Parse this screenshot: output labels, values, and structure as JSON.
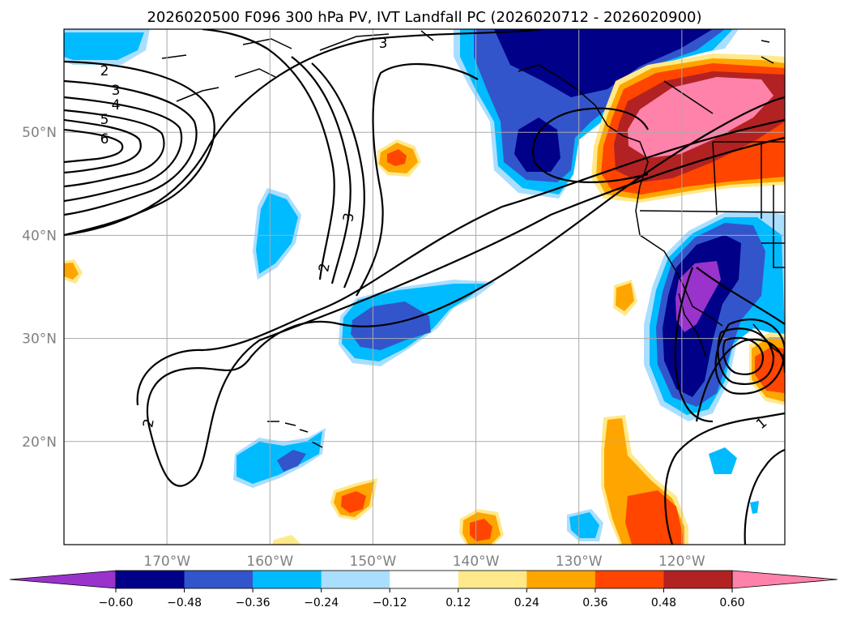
{
  "chart_data": {
    "type": "heatmap",
    "title": "2026020500 F096 300 hPa PV, IVT Landfall PC (2026020712 - 2026020900)",
    "map_extent": {
      "lon": [
        -180,
        -110
      ],
      "lat": [
        10,
        60
      ]
    },
    "lat_ticks": [
      20,
      30,
      40,
      50
    ],
    "lat_labels": [
      "20°N",
      "30°N",
      "40°N",
      "50°N"
    ],
    "lon_ticks": [
      -170,
      -160,
      -150,
      -140,
      -130,
      -120
    ],
    "lon_labels": [
      "170°W",
      "160°W",
      "150°W",
      "140°W",
      "130°W",
      "120°W"
    ],
    "grid": true,
    "colorbar": {
      "orientation": "horizontal",
      "extend": "both",
      "levels": [
        -0.6,
        -0.48,
        -0.36,
        -0.24,
        -0.12,
        0.12,
        0.24,
        0.36,
        0.48,
        0.6
      ],
      "tick_labels": [
        "−0.60",
        "−0.48",
        "−0.36",
        "−0.24",
        "−0.12",
        "0.12",
        "0.24",
        "0.36",
        "0.48",
        "0.60"
      ],
      "colors": [
        "#9933cc",
        "#000088",
        "#3355cc",
        "#00bbff",
        "#aadeff",
        "#ffffff",
        "#ffe98a",
        "#ffa500",
        "#ff4500",
        "#b22222",
        "#ff82aa"
      ]
    },
    "filled_regions": [
      {
        "name": "gulf-of-alaska-negative",
        "value": -0.55,
        "lon": -135,
        "lat": 54
      },
      {
        "name": "baja-negative",
        "value": -0.6,
        "lon": -121,
        "lat": 33
      },
      {
        "name": "pacific-northwest-positive",
        "value": 0.65,
        "lon": -120,
        "lat": 51
      },
      {
        "name": "subtropical-negative",
        "value": -0.4,
        "lon": -150,
        "lat": 31
      },
      {
        "name": "hawaii-negative",
        "value": -0.38,
        "lon": -158,
        "lat": 18
      },
      {
        "name": "southern-positive",
        "value": 0.45,
        "lon": -126,
        "lat": 14
      },
      {
        "name": "mexico-positive",
        "value": 0.5,
        "lon": -111,
        "lat": 27
      }
    ],
    "contour_labels": [
      "2",
      "3",
      "4",
      "5",
      "6",
      "3",
      "3",
      "2",
      "2",
      "1"
    ]
  }
}
